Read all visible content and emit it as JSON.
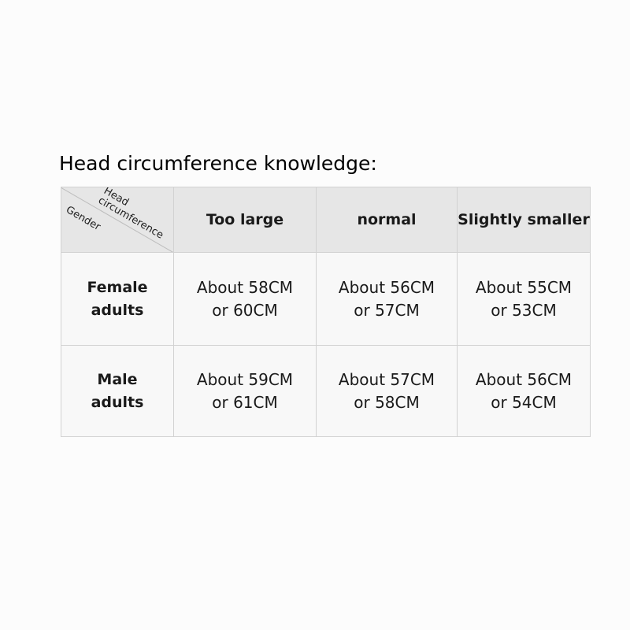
{
  "title": "Head circumference knowledge:",
  "table": {
    "corner": {
      "column_axis_line1": "Head",
      "column_axis_line2": "circumference",
      "row_axis": "Gender"
    },
    "columns": [
      "Too large",
      "normal",
      "Slightly smaller"
    ],
    "rows": [
      {
        "label_line1": "Female",
        "label_line2": "adults",
        "cells": [
          [
            "About 58CM",
            "or 60CM"
          ],
          [
            "About 56CM",
            "or 57CM"
          ],
          [
            "About 55CM",
            "or 53CM"
          ]
        ]
      },
      {
        "label_line1": "Male",
        "label_line2": "adults",
        "cells": [
          [
            "About 59CM",
            "or 61CM"
          ],
          [
            "About 57CM",
            "or 58CM"
          ],
          [
            "About 56CM",
            "or 54CM"
          ]
        ]
      }
    ]
  }
}
